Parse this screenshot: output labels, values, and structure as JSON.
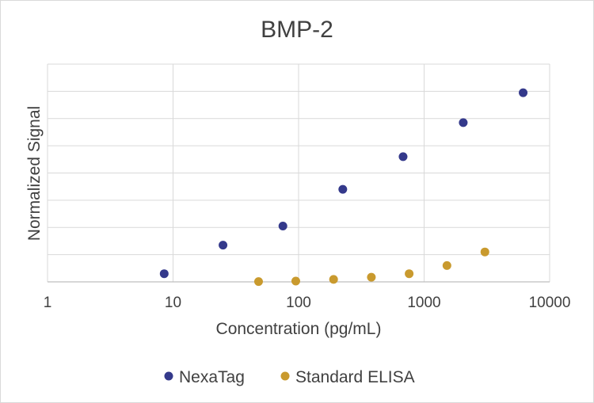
{
  "chart_data": {
    "type": "scatter",
    "title": "BMP-2",
    "xlabel": "Concentration (pg/mL)",
    "ylabel": "Normalized Signal",
    "x_scale": "log",
    "xlim": [
      1,
      10000
    ],
    "x_ticks": [
      "1",
      "10",
      "100",
      "1000",
      "10000"
    ],
    "ylim": [
      0,
      8
    ],
    "y_gridlines": 8,
    "grid": true,
    "legend_position": "bottom",
    "series": [
      {
        "name": "NexaTag",
        "color": "#34398b",
        "points": [
          {
            "x": 8.5,
            "y": 0.3
          },
          {
            "x": 25,
            "y": 1.35
          },
          {
            "x": 75,
            "y": 2.05
          },
          {
            "x": 225,
            "y": 3.4
          },
          {
            "x": 680,
            "y": 4.6
          },
          {
            "x": 2050,
            "y": 5.85
          },
          {
            "x": 6150,
            "y": 6.95
          }
        ]
      },
      {
        "name": "Standard ELISA",
        "color": "#c99a2e",
        "points": [
          {
            "x": 48,
            "y": 0.01
          },
          {
            "x": 95,
            "y": 0.03
          },
          {
            "x": 190,
            "y": 0.09
          },
          {
            "x": 380,
            "y": 0.17
          },
          {
            "x": 760,
            "y": 0.3
          },
          {
            "x": 1520,
            "y": 0.6
          },
          {
            "x": 3050,
            "y": 1.1
          }
        ]
      }
    ]
  }
}
